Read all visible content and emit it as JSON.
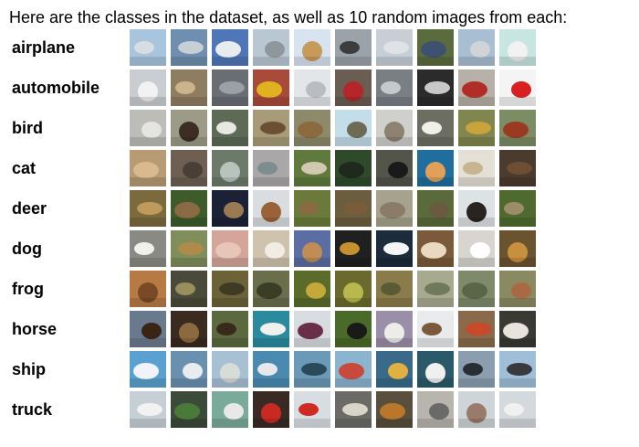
{
  "heading": "Here are the classes in the dataset, as well as 10 random images from each:",
  "classes": [
    {
      "label": "airplane",
      "bg": [
        "#a9c4dd",
        "#6f8fb0",
        "#4f77b8",
        "#b9c7d2",
        "#d7e3ee",
        "#9aa3aa",
        "#c6cfd6",
        "#5a6b3e",
        "#a8bfd3",
        "#c8e6e1"
      ],
      "fg": [
        "#d8dde3",
        "#c7ced6",
        "#e8ecef",
        "#8f969c",
        "#c89a5a",
        "#3d3d3d",
        "#dfe2e6",
        "#3e5170",
        "#d0d4d8",
        "#f2f2f2"
      ]
    },
    {
      "label": "automobile",
      "bg": [
        "#c9cdd1",
        "#8f7d62",
        "#6a6e72",
        "#a94b3b",
        "#e3e6e9",
        "#6a5d52",
        "#7a7f84",
        "#2b2b2b",
        "#b7b0a8",
        "#f4f4f4"
      ],
      "fg": [
        "#f2f2f2",
        "#cbb48b",
        "#9aa0a6",
        "#e0b21f",
        "#b9bdc2",
        "#b5262a",
        "#c5c9cd",
        "#c8c8c8",
        "#b12e26",
        "#d82020"
      ]
    },
    {
      "label": "bird",
      "bg": [
        "#bcbdb8",
        "#9b9b88",
        "#5c6a56",
        "#a89b77",
        "#8c8a6a",
        "#c3dde9",
        "#cfcfcc",
        "#6d6e62",
        "#80864e",
        "#7c8c64"
      ],
      "fg": [
        "#e6e4e0",
        "#3d2e24",
        "#e8e7e3",
        "#6b5034",
        "#8c6a3f",
        "#6e6a54",
        "#8d8170",
        "#f0efea",
        "#c9a43a",
        "#9b3a22"
      ]
    },
    {
      "label": "cat",
      "bg": [
        "#b79b75",
        "#6e5f52",
        "#6c7a6a",
        "#a9a7a8",
        "#5f7a3c",
        "#2f4a2a",
        "#53544a",
        "#1f6e9e",
        "#e5e0d5",
        "#4a3b2e"
      ],
      "fg": [
        "#d9b98e",
        "#4a3f36",
        "#b7c3bc",
        "#7c8c8f",
        "#d0c8b0",
        "#1e2a1c",
        "#1a1a1a",
        "#e0a05a",
        "#c8b48e",
        "#6d4e32"
      ]
    },
    {
      "label": "deer",
      "bg": [
        "#7a6a3e",
        "#3d5c2a",
        "#1c2236",
        "#d9dde0",
        "#6b7a3a",
        "#6b5e3f",
        "#a7a28e",
        "#5a6a3a",
        "#dde2e5",
        "#4f6a2e"
      ],
      "fg": [
        "#c09a5c",
        "#8a6a44",
        "#9a7a52",
        "#9a6238",
        "#8a6a44",
        "#7a5b3a",
        "#8a7c66",
        "#6a5a42",
        "#2a2420",
        "#9c8d6a"
      ]
    },
    {
      "label": "dog",
      "bg": [
        "#8a8a84",
        "#7f8e5a",
        "#d5a59a",
        "#cfc3ad",
        "#5a6ea3",
        "#202020",
        "#1c2c3c",
        "#7a5a3a",
        "#d8d5d0",
        "#6a5430"
      ],
      "fg": [
        "#f0f0ee",
        "#b08a4a",
        "#e6c6b8",
        "#f2ede4",
        "#c08d55",
        "#c5902e",
        "#f5f5f5",
        "#e8d9c0",
        "#ffffff",
        "#c8903e"
      ]
    },
    {
      "label": "frog",
      "bg": [
        "#b87a44",
        "#4a4a3a",
        "#6c6238",
        "#6a6e4a",
        "#5a6b2a",
        "#6a6a2e",
        "#8a7c4a",
        "#a8aa90",
        "#7e8a6a",
        "#8a8a62"
      ],
      "fg": [
        "#7a4a26",
        "#9a8e5c",
        "#3e3a24",
        "#3a3e24",
        "#c5a83a",
        "#b8b84e",
        "#5a5a36",
        "#6e7a5a",
        "#5a6648",
        "#a86a44"
      ]
    },
    {
      "label": "horse",
      "bg": [
        "#6a7a8e",
        "#3a2a20",
        "#5a6a3e",
        "#2a8a9e",
        "#d8dce0",
        "#4a6a2a",
        "#9a8ea8",
        "#e8eaec",
        "#8a6a4a",
        "#3a3a34"
      ],
      "fg": [
        "#3a2416",
        "#8a6a3e",
        "#3a2a1c",
        "#f0f0ec",
        "#6a2f48",
        "#1a1a18",
        "#ecece8",
        "#7a5a3a",
        "#c84a2a",
        "#e8e4dc"
      ]
    },
    {
      "label": "ship",
      "bg": [
        "#5aa0d0",
        "#6a90b0",
        "#a8c0d4",
        "#4a8ab0",
        "#6a9ab8",
        "#8ab4d0",
        "#3a6a8a",
        "#2a5a6a",
        "#8a9eb0",
        "#9fbfd8"
      ],
      "fg": [
        "#f0f4f8",
        "#e8ecef",
        "#d8dcd6",
        "#e8e8ea",
        "#2a4a5a",
        "#c84a3a",
        "#e0b040",
        "#f0f0f0",
        "#2a2e34",
        "#3a3a3e"
      ]
    },
    {
      "label": "truck",
      "bg": [
        "#c7cfd6",
        "#3c4a3a",
        "#7aaa9a",
        "#3a2a24",
        "#d8dde2",
        "#6a6a66",
        "#5a4e3c",
        "#b8b4ae",
        "#cfd4d8",
        "#d4d9dd"
      ],
      "fg": [
        "#f2f2f0",
        "#4a7a3a",
        "#e8e8e6",
        "#c82a22",
        "#d02a22",
        "#d8d4c8",
        "#b8772a",
        "#6a6a68",
        "#9a7a6a",
        "#f0f0ee"
      ]
    }
  ]
}
